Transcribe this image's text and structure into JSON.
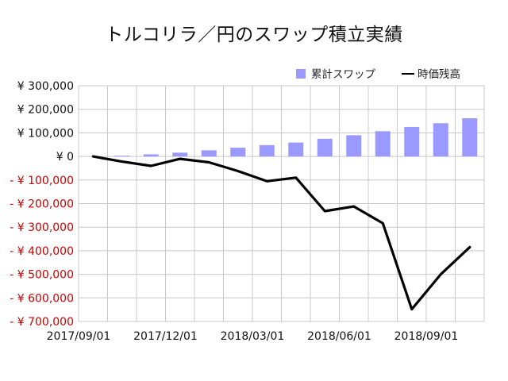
{
  "chart_data": {
    "type": "bar",
    "title": "トルコリラ／円のスワップ積立実績",
    "legend_position": "top-right",
    "grid": true,
    "ylim": [
      -700000,
      300000
    ],
    "ytick_values": [
      300000,
      200000,
      100000,
      0,
      -100000,
      -200000,
      -300000,
      -400000,
      -500000,
      -600000,
      -700000
    ],
    "ytick_labels": [
      "¥ 300,000",
      "¥ 200,000",
      "¥ 100,000",
      "¥ 0",
      "- ¥ 100,000",
      "- ¥ 200,000",
      "- ¥ 300,000",
      "- ¥ 400,000",
      "- ¥ 500,000",
      "- ¥ 600,000",
      "- ¥ 700,000"
    ],
    "xtick_labels": [
      "2017/09/01",
      "2017/12/01",
      "2018/03/01",
      "2018/06/01",
      "2018/09/01"
    ],
    "xtick_indices": [
      0,
      3,
      6,
      9,
      12
    ],
    "categories": [
      "2017/09/01",
      "2017/10/01",
      "2017/11/01",
      "2017/12/01",
      "2018/01/01",
      "2018/02/01",
      "2018/03/01",
      "2018/04/01",
      "2018/05/01",
      "2018/06/01",
      "2018/07/01",
      "2018/08/01",
      "2018/09/01",
      "2018/10/01"
    ],
    "series": [
      {
        "name": "累計スワップ",
        "type": "bar",
        "color": "#9999ff",
        "values": [
          0,
          3000,
          9000,
          16000,
          26000,
          37000,
          48000,
          59000,
          75000,
          90000,
          107000,
          125000,
          141000,
          162000
        ]
      },
      {
        "name": "時価残高",
        "type": "line",
        "color": "#000000",
        "values": [
          0,
          -22000,
          -40000,
          -10000,
          -25000,
          -62000,
          -105000,
          -90000,
          -232000,
          -212000,
          -283000,
          -648000,
          -500000,
          -385000
        ]
      }
    ],
    "negative_tick_color": "#cc0000",
    "positive_tick_color": "#111111"
  }
}
